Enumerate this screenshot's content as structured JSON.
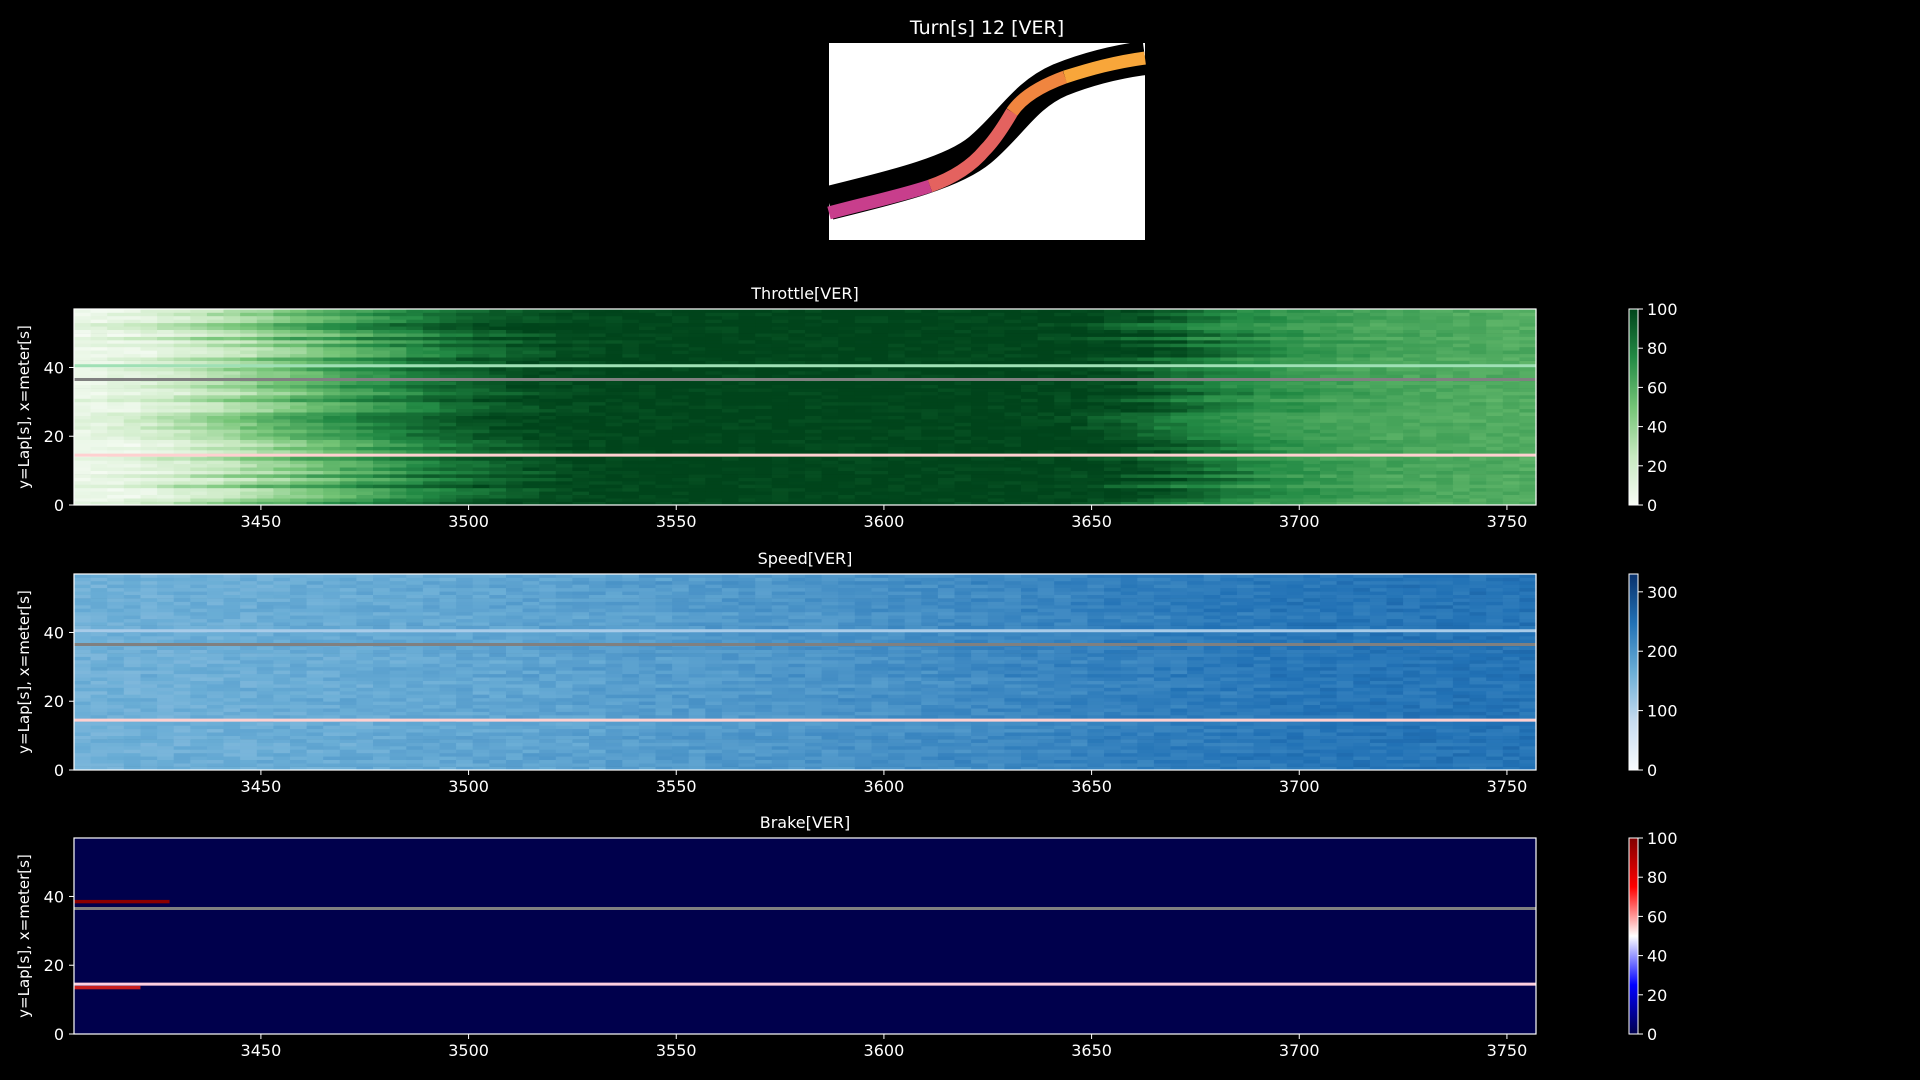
{
  "figure": {
    "title": "Turn[s] 12 [VER]",
    "background": "#000000"
  },
  "track_map": {
    "colors": [
      "#c83e8c",
      "#e4625f",
      "#f0853f",
      "#f8a63a"
    ]
  },
  "chart_data": [
    {
      "type": "heatmap",
      "title": "Throttle[VER]",
      "xlabel": "",
      "ylabel": "y=Lap[s], x=meter[s]",
      "xlim": [
        3405,
        3757
      ],
      "ylim": [
        0,
        57
      ],
      "xticks": [
        3450,
        3500,
        3550,
        3600,
        3650,
        3700,
        3750
      ],
      "yticks": [
        0,
        20,
        40
      ],
      "colormap": "Greens",
      "cmap_colors": [
        "#f7fcf5",
        "#c7e9c0",
        "#74c476",
        "#238b45",
        "#00441b"
      ],
      "colorbar_range": [
        0,
        100
      ],
      "colorbar_ticks": [
        0,
        20,
        40,
        60,
        80,
        100
      ],
      "profile_x": [
        3405,
        3425,
        3440,
        3455,
        3470,
        3490,
        3510,
        3530,
        3600,
        3640,
        3655,
        3665,
        3680,
        3700,
        3720,
        3757
      ],
      "profile_value": [
        5,
        18,
        35,
        52,
        68,
        85,
        96,
        100,
        100,
        100,
        96,
        88,
        75,
        68,
        63,
        60
      ],
      "highlight_lines": [
        {
          "y": 14,
          "color": "#ffd0d0"
        },
        {
          "y": 36,
          "color": "#808080"
        },
        {
          "y": 40,
          "color": "#9fe0b5"
        }
      ]
    },
    {
      "type": "heatmap",
      "title": "Speed[VER]",
      "xlabel": "",
      "ylabel": "y=Lap[s], x=meter[s]",
      "xlim": [
        3405,
        3757
      ],
      "ylim": [
        0,
        57
      ],
      "xticks": [
        3450,
        3500,
        3550,
        3600,
        3650,
        3700,
        3750
      ],
      "yticks": [
        0,
        20,
        40
      ],
      "colormap": "Blues",
      "cmap_colors": [
        "#f7fbff",
        "#c6dbef",
        "#6baed6",
        "#2171b5",
        "#08306b"
      ],
      "colorbar_range": [
        0,
        330
      ],
      "colorbar_ticks": [
        0,
        100,
        200,
        300
      ],
      "profile_x": [
        3405,
        3450,
        3500,
        3550,
        3600,
        3650,
        3700,
        3757
      ],
      "profile_value": [
        160,
        165,
        175,
        190,
        205,
        225,
        240,
        245
      ],
      "highlight_lines": [
        {
          "y": 14,
          "color": "#ffd0d0"
        },
        {
          "y": 36,
          "color": "#808080"
        },
        {
          "y": 40,
          "color": "#a8cbe8"
        }
      ]
    },
    {
      "type": "heatmap",
      "title": "Brake[VER]",
      "xlabel": "",
      "ylabel": "y=Lap[s], x=meter[s]",
      "xlim": [
        3405,
        3757
      ],
      "ylim": [
        0,
        57
      ],
      "xticks": [
        3450,
        3500,
        3550,
        3600,
        3650,
        3700,
        3750
      ],
      "yticks": [
        0,
        20,
        40
      ],
      "colormap": "seismic",
      "cmap_colors": [
        "#00004c",
        "#0000ff",
        "#ffffff",
        "#ff0000",
        "#800000"
      ],
      "colorbar_range": [
        0,
        100
      ],
      "colorbar_ticks": [
        0,
        20,
        40,
        60,
        80,
        100
      ],
      "base_color": "#00004c",
      "segments": [
        {
          "y": 38,
          "x0": 3405,
          "x1": 3428,
          "color": "#8b0000"
        },
        {
          "y": 13,
          "x0": 3405,
          "x1": 3421,
          "color": "#c81e1e"
        }
      ],
      "highlight_lines": [
        {
          "y": 14,
          "color": "#ffd0e0"
        },
        {
          "y": 36,
          "color": "#808080"
        }
      ]
    }
  ]
}
